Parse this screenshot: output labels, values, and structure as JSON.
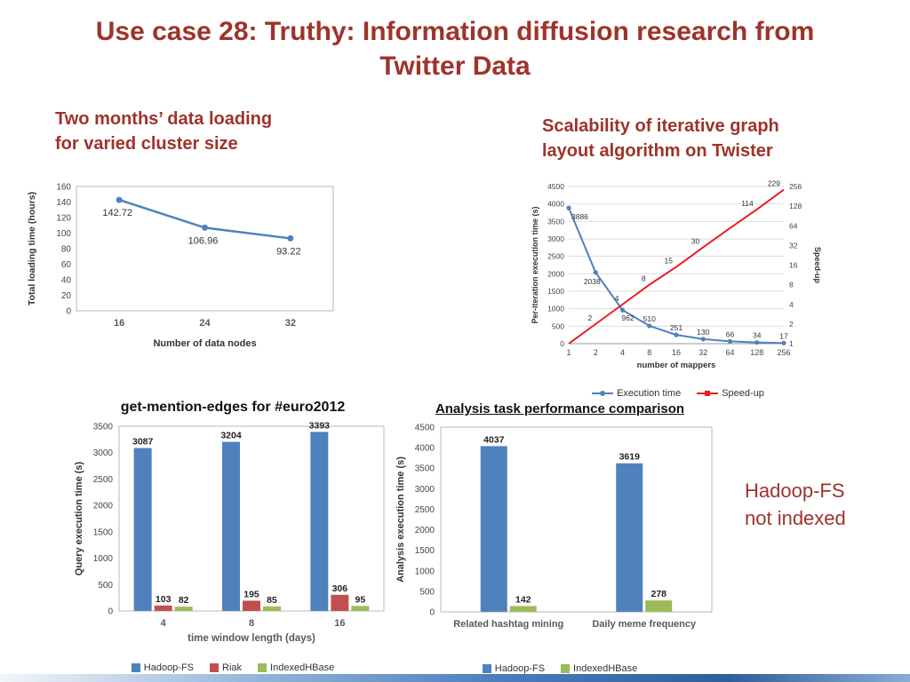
{
  "colors": {
    "accent_red": "#9E332B",
    "series_blue": "#4F81BD",
    "series_red_bar": "#C0504D",
    "series_green": "#9BBB59",
    "speedup_red": "#ED1C24"
  },
  "slide": {
    "title": "Use case 28: Truthy: Information diffusion research from\nTwitter Data",
    "left_heading": "Two months’ data loading\nfor varied cluster size",
    "right_heading": "Scalability of iterative graph\nlayout algorithm on Twister",
    "note": "Hadoop-FS\nnot indexed"
  },
  "chart_data": [
    {
      "type": "line",
      "title": "",
      "xlabel": "Number of data nodes",
      "ylabel": "Total loading time (hours)",
      "x": [
        "16",
        "24",
        "32"
      ],
      "series": [
        {
          "name": "Total loading time",
          "color": "#4F81BD",
          "values": [
            142.72,
            106.96,
            93.22
          ]
        }
      ],
      "ylim": [
        0,
        160
      ],
      "ytick": 20
    },
    {
      "type": "line-dual-axis",
      "title": "",
      "xlabel": "number of mappers",
      "categories": [
        "1",
        "2",
        "4",
        "8",
        "16",
        "32",
        "64",
        "128",
        "256"
      ],
      "left": {
        "name": "Execution time",
        "ylabel": "Per-iteration execution time (s)",
        "color": "#4F81BD",
        "values": [
          3886,
          2038,
          962,
          510,
          251,
          130,
          66,
          34,
          17
        ],
        "labels": [
          "3886",
          "2038",
          "962",
          "510",
          "251",
          "130",
          "66",
          "34",
          "17"
        ],
        "ylim": [
          0,
          4500
        ],
        "ytick": 500
      },
      "right": {
        "name": "Speed-up",
        "ylabel": "Speed-up",
        "color": "#ED1C24",
        "values": [
          1,
          2,
          4,
          8,
          15,
          30,
          59,
          114,
          229
        ],
        "labels": [
          null,
          "2",
          "4",
          "8",
          "15",
          "30",
          null,
          "114",
          "229"
        ],
        "ylim": [
          1,
          256
        ],
        "scale": "log2"
      }
    },
    {
      "type": "bar",
      "title": "get-mention-edges for #euro2012",
      "xlabel": "time window length (days)",
      "ylabel": "Query execution time (s)",
      "categories": [
        "4",
        "8",
        "16"
      ],
      "series": [
        {
          "name": "Hadoop-FS",
          "color": "#4F81BD",
          "values": [
            3087,
            3204,
            3393
          ]
        },
        {
          "name": "Riak",
          "color": "#C0504D",
          "values": [
            103,
            195,
            306
          ]
        },
        {
          "name": "IndexedHBase",
          "color": "#9BBB59",
          "values": [
            82,
            85,
            95
          ]
        }
      ],
      "ylim": [
        0,
        3500
      ],
      "ytick": 500
    },
    {
      "type": "bar",
      "title": "Analysis task performance comparison",
      "xlabel": "",
      "ylabel": "Analysis execution time (s)",
      "categories": [
        "Related hashtag mining",
        "Daily meme frequency"
      ],
      "series": [
        {
          "name": "Hadoop-FS",
          "color": "#4F81BD",
          "values": [
            4037,
            3619
          ]
        },
        {
          "name": "IndexedHBase",
          "color": "#9BBB59",
          "values": [
            142,
            278
          ]
        }
      ],
      "ylim": [
        0,
        4500
      ],
      "ytick": 500
    }
  ]
}
